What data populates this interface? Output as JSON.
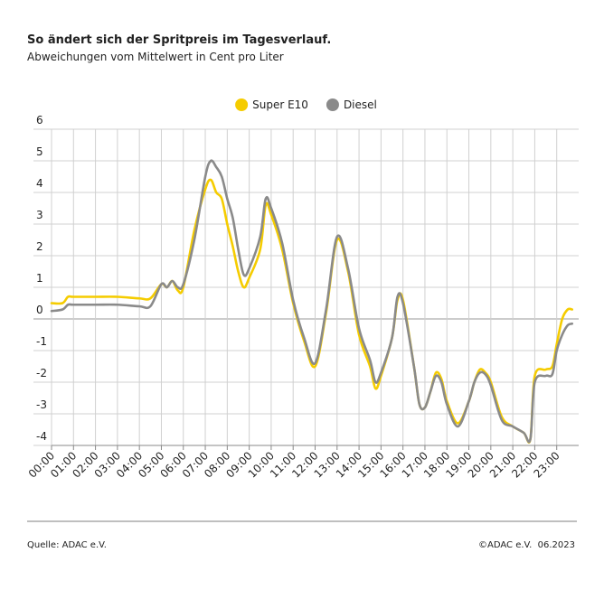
{
  "chart_data": {
    "type": "line",
    "title": "So ändert sich der Spritpreis im Tagesverlauf.",
    "subtitle": "Abweichungen vom Mittelwert in Cent pro Liter",
    "source": "Quelle: ADAC e.V.",
    "copyright": "©ADAC e.V.  06.2023",
    "x": [
      0,
      0.5,
      0.75,
      1,
      2,
      3,
      4,
      4.5,
      5,
      5.25,
      5.5,
      5.75,
      6,
      6.5,
      7,
      7.25,
      7.5,
      7.75,
      8,
      8.25,
      8.5,
      8.75,
      9,
      9.5,
      9.75,
      10,
      10.5,
      11,
      11.5,
      12,
      12.5,
      13,
      13.5,
      14,
      14.5,
      14.75,
      15,
      15.5,
      15.75,
      16,
      16.5,
      16.75,
      17,
      17.25,
      17.5,
      17.75,
      18,
      18.5,
      19,
      19.25,
      19.5,
      19.75,
      20,
      20.5,
      21,
      21.5,
      21.8,
      22,
      22.5,
      22.8,
      23,
      23.25,
      23.5,
      23.7
    ],
    "series": [
      {
        "name": "Super E10",
        "color": "#f5cc00",
        "values": [
          0.5,
          0.5,
          0.7,
          0.7,
          0.7,
          0.7,
          0.65,
          0.65,
          1.1,
          1.0,
          1.2,
          0.9,
          1.0,
          2.8,
          4.1,
          4.4,
          4.0,
          3.8,
          3.0,
          2.3,
          1.5,
          1.0,
          1.3,
          2.2,
          3.6,
          3.3,
          2.2,
          0.5,
          -0.7,
          -1.5,
          0.2,
          2.5,
          1.5,
          -0.5,
          -1.5,
          -2.2,
          -1.8,
          -0.6,
          0.6,
          0.6,
          -1.5,
          -2.7,
          -2.8,
          -2.3,
          -1.7,
          -1.9,
          -2.6,
          -3.3,
          -2.6,
          -2.0,
          -1.6,
          -1.7,
          -2.0,
          -3.1,
          -3.4,
          -3.6,
          -3.8,
          -1.8,
          -1.6,
          -1.5,
          -0.8,
          0,
          0.3,
          0.3
        ]
      },
      {
        "name": "Diesel",
        "color": "#8a8a8a",
        "values": [
          0.25,
          0.3,
          0.45,
          0.45,
          0.45,
          0.45,
          0.4,
          0.4,
          1.1,
          1.0,
          1.2,
          1.0,
          1.1,
          2.5,
          4.5,
          5.0,
          4.8,
          4.5,
          3.8,
          3.2,
          2.2,
          1.4,
          1.6,
          2.6,
          3.8,
          3.5,
          2.4,
          0.6,
          -0.6,
          -1.4,
          0.3,
          2.6,
          1.6,
          -0.3,
          -1.3,
          -2.0,
          -1.7,
          -0.6,
          0.7,
          0.5,
          -1.5,
          -2.7,
          -2.8,
          -2.3,
          -1.8,
          -2.0,
          -2.7,
          -3.4,
          -2.6,
          -2.0,
          -1.7,
          -1.75,
          -2.1,
          -3.2,
          -3.4,
          -3.6,
          -3.8,
          -2.0,
          -1.8,
          -1.75,
          -1.0,
          -0.5,
          -0.2,
          -0.15
        ]
      }
    ],
    "xlim": [
      0,
      24
    ],
    "xticks": [
      {
        "value": 0,
        "label": "00:00"
      },
      {
        "value": 1,
        "label": "01:00"
      },
      {
        "value": 2,
        "label": "02:00"
      },
      {
        "value": 3,
        "label": "03:00"
      },
      {
        "value": 4,
        "label": "04:00"
      },
      {
        "value": 5,
        "label": "05:00"
      },
      {
        "value": 6,
        "label": "06:00"
      },
      {
        "value": 7,
        "label": "07:00"
      },
      {
        "value": 8,
        "label": "08:00"
      },
      {
        "value": 9,
        "label": "09:00"
      },
      {
        "value": 10,
        "label": "10:00"
      },
      {
        "value": 11,
        "label": "11:00"
      },
      {
        "value": 12,
        "label": "12:00"
      },
      {
        "value": 13,
        "label": "13:00"
      },
      {
        "value": 14,
        "label": "14:00"
      },
      {
        "value": 15,
        "label": "15:00"
      },
      {
        "value": 16,
        "label": "16:00"
      },
      {
        "value": 17,
        "label": "17:00"
      },
      {
        "value": 18,
        "label": "18:00"
      },
      {
        "value": 19,
        "label": "19:00"
      },
      {
        "value": 20,
        "label": "20:00"
      },
      {
        "value": 21,
        "label": "21:00"
      },
      {
        "value": 22,
        "label": "22:00"
      },
      {
        "value": 23,
        "label": "23:00"
      }
    ],
    "ylim": [
      -4,
      6
    ],
    "yticks": [
      -4,
      -3,
      -2,
      -1,
      0,
      1,
      2,
      3,
      4,
      5,
      6
    ],
    "grid": true,
    "legend": "top"
  }
}
